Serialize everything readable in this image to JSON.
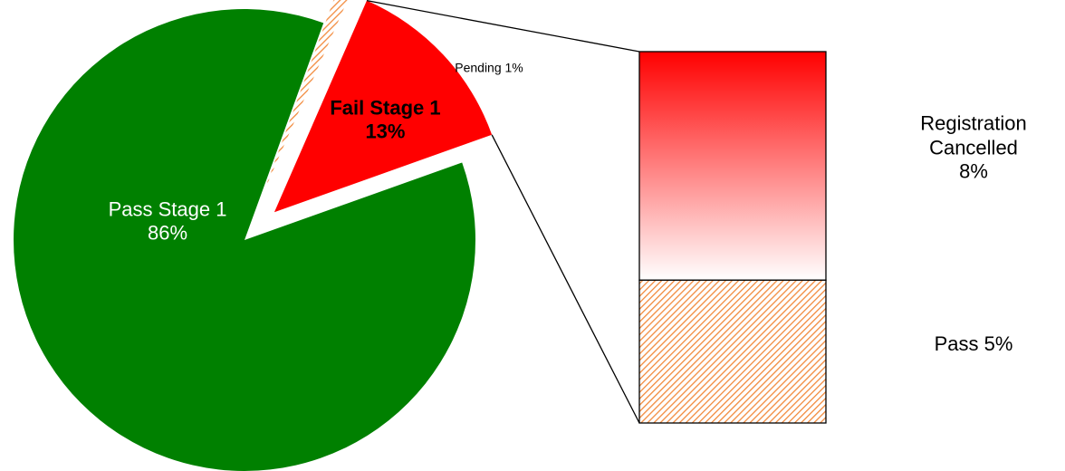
{
  "chart_data": {
    "type": "pie",
    "categories": [
      "Pass Stage 1",
      "Pending",
      "Fail Stage 1"
    ],
    "values": [
      86,
      1,
      13
    ],
    "value_labels": [
      "86%",
      "1%",
      "13%"
    ],
    "colors": [
      "#008000",
      "#f28a3c",
      "#ff0000"
    ],
    "breakdown": {
      "type": "bar",
      "categories": [
        "Registration Cancelled",
        "Pass"
      ],
      "values": [
        8,
        5
      ],
      "value_labels": [
        "8%",
        "5%"
      ],
      "colors": [
        "#ff0000",
        "#f28a3c"
      ]
    }
  }
}
